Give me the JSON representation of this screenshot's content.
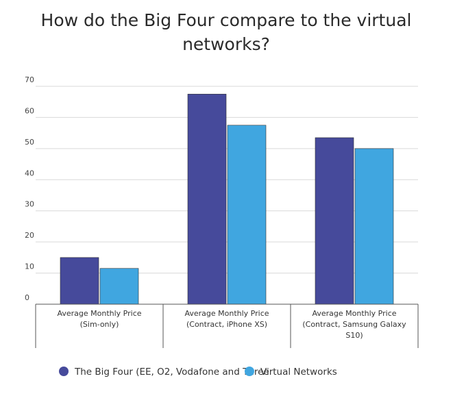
{
  "chart_data": {
    "type": "bar",
    "title_lines": [
      "How do the Big Four compare to the virtual",
      "networks?"
    ],
    "categories": [
      [
        "Average Monthly Price",
        "(Sim-only)"
      ],
      [
        "Average Monthly Price",
        "(Contract, iPhone XS)"
      ],
      [
        "Average Monthly Price",
        "(Contract, Samsung Galaxy",
        "S10)"
      ]
    ],
    "series": [
      {
        "name": "The Big Four (EE, O2, Vodafone and Three",
        "color": "#464a9b",
        "values": [
          15,
          67.5,
          53.5
        ]
      },
      {
        "name": "Virtual Networks",
        "color": "#40a6e0",
        "values": [
          11.5,
          57.5,
          50
        ]
      }
    ],
    "ylim": [
      0,
      70
    ],
    "yticks": [
      0,
      10,
      20,
      30,
      40,
      50,
      60,
      70
    ],
    "grid": true,
    "legend_position": "bottom"
  }
}
